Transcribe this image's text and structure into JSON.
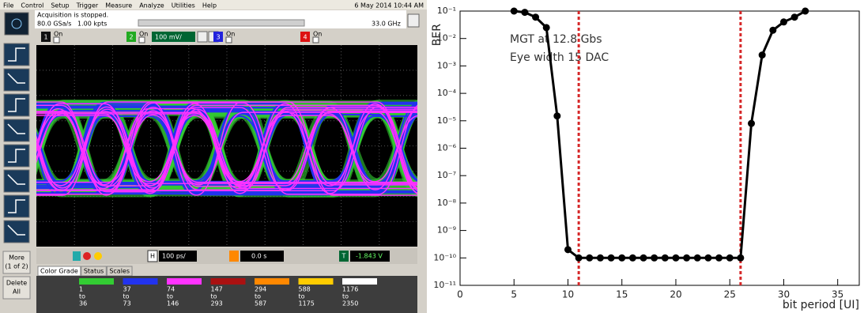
{
  "scope": {
    "menu": [
      "File",
      "Control",
      "Setup",
      "Trigger",
      "Measure",
      "Analyze",
      "Utilities",
      "Help"
    ],
    "datetime": "6 May 2014 10:44 AM",
    "status": "Acquisition is stopped.",
    "sample_rate": "80.0 GSa/s   1.00 kpts",
    "bandwidth": "33.0 GHz",
    "channels": [
      {
        "number": "1",
        "state": "On"
      },
      {
        "number": "2",
        "state": "On",
        "scale": "100 mV/"
      },
      {
        "number": "3",
        "state": "On"
      },
      {
        "number": "4",
        "state": "On"
      }
    ],
    "more": [
      "More",
      "(1 of 2)"
    ],
    "delete": [
      "Delete",
      "All"
    ],
    "timebase_marker": "H",
    "timebase": "100 ps/",
    "delay": "0.0 s",
    "trigger_marker": "T",
    "trigger_level": "-1.843 V",
    "tabs": [
      "Color Grade",
      "Status",
      "Scales"
    ],
    "color_grade": [
      {
        "color": "#33cc33",
        "range": [
          "1",
          "to",
          "36"
        ]
      },
      {
        "color": "#2233ee",
        "range": [
          "37",
          "to",
          "73"
        ]
      },
      {
        "color": "#ff33ff",
        "range": [
          "74",
          "to",
          "146"
        ]
      },
      {
        "color": "#aa1111",
        "range": [
          "147",
          "to",
          "293"
        ]
      },
      {
        "color": "#ff8800",
        "range": [
          "294",
          "to",
          "587"
        ]
      },
      {
        "color": "#ffcc00",
        "range": [
          "588",
          "to",
          "1175"
        ]
      },
      {
        "color": "#ffffff",
        "range": [
          "1176",
          "to",
          "2350"
        ]
      }
    ]
  },
  "chart_data": {
    "type": "line",
    "x_label": "bit period [UI]",
    "y_label": "BER",
    "annotations": [
      "MGT at 12.8 Gbs",
      "Eye width 15 DAC"
    ],
    "x": [
      5,
      6,
      7,
      8,
      9,
      10,
      11,
      12,
      13,
      14,
      15,
      16,
      17,
      18,
      19,
      20,
      21,
      22,
      23,
      24,
      25,
      26,
      27,
      28,
      29,
      30,
      31,
      32
    ],
    "values": [
      0.1,
      0.09,
      0.06,
      0.025,
      1.5e-05,
      2e-10,
      1e-10,
      1e-10,
      1e-10,
      1e-10,
      1e-10,
      1e-10,
      1e-10,
      1e-10,
      1e-10,
      1e-10,
      1e-10,
      1e-10,
      1e-10,
      1e-10,
      1e-10,
      1e-10,
      8e-06,
      0.0025,
      0.02,
      0.04,
      0.06,
      0.1
    ],
    "color": "#000000",
    "vlines": [
      11,
      26
    ],
    "vline_color": "#d62728",
    "xlim": [
      0,
      37
    ],
    "xticks": [
      0,
      5,
      10,
      15,
      20,
      25,
      30,
      35
    ],
    "ylim": [
      1e-11,
      0.1
    ],
    "log_y": true,
    "yticks": [
      {
        "value": 1e-11,
        "label": "10⁻¹¹"
      },
      {
        "value": 1e-10,
        "label": "10⁻¹⁰"
      },
      {
        "value": 1e-09,
        "label": "10⁻⁹"
      },
      {
        "value": 1e-08,
        "label": "10⁻⁸"
      },
      {
        "value": 1e-07,
        "label": "10⁻⁷"
      },
      {
        "value": 1e-06,
        "label": "10⁻⁶"
      },
      {
        "value": 1e-05,
        "label": "10⁻⁵"
      },
      {
        "value": 0.0001,
        "label": "10⁻⁴"
      },
      {
        "value": 0.001,
        "label": "10⁻³"
      },
      {
        "value": 0.01,
        "label": "10⁻²"
      },
      {
        "value": 0.1,
        "label": "10⁻¹"
      }
    ]
  }
}
